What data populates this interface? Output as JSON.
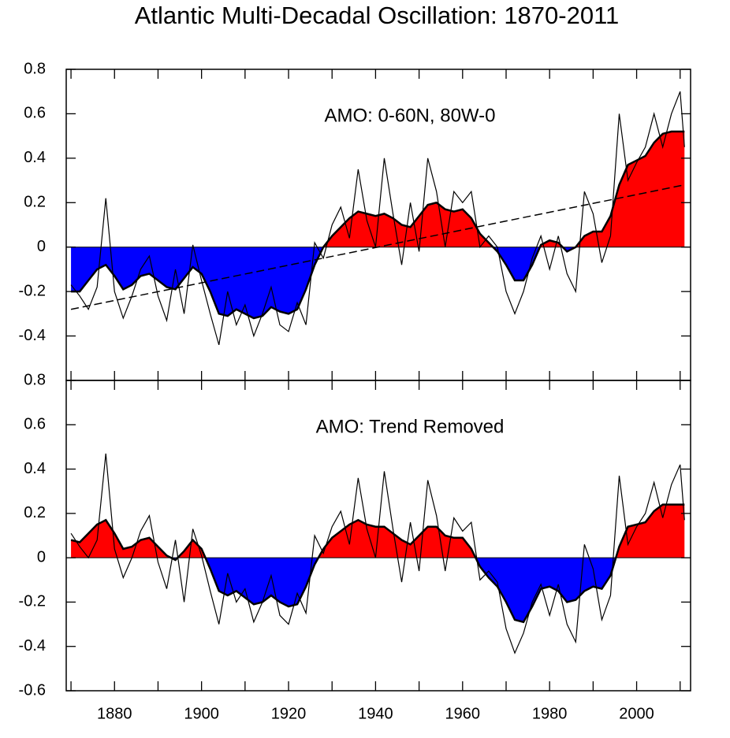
{
  "chart_data": [
    {
      "type": "area",
      "title": "Atlantic Multi-Decadal Oscillation: 1870-2011",
      "annotation": "AMO: 0-60N, 80W-0",
      "x": [
        1870,
        1872,
        1874,
        1876,
        1878,
        1880,
        1882,
        1884,
        1886,
        1888,
        1890,
        1892,
        1894,
        1896,
        1898,
        1900,
        1902,
        1904,
        1906,
        1908,
        1910,
        1912,
        1914,
        1916,
        1918,
        1920,
        1922,
        1924,
        1926,
        1928,
        1930,
        1932,
        1934,
        1936,
        1938,
        1940,
        1942,
        1944,
        1946,
        1948,
        1950,
        1952,
        1954,
        1956,
        1958,
        1960,
        1962,
        1964,
        1966,
        1968,
        1970,
        1972,
        1974,
        1976,
        1978,
        1980,
        1982,
        1984,
        1986,
        1988,
        1990,
        1992,
        1994,
        1996,
        1998,
        2000,
        2002,
        2004,
        2006,
        2008,
        2010,
        2011
      ],
      "series": [
        {
          "style": "fill",
          "color": "#000000",
          "positive_color": "#ff0000",
          "negative_color": "#0000ff",
          "values": [
            -0.2,
            -0.2,
            -0.15,
            -0.1,
            -0.08,
            -0.13,
            -0.19,
            -0.17,
            -0.13,
            -0.12,
            -0.15,
            -0.18,
            -0.19,
            -0.14,
            -0.09,
            -0.12,
            -0.2,
            -0.3,
            -0.31,
            -0.28,
            -0.3,
            -0.32,
            -0.31,
            -0.27,
            -0.29,
            -0.3,
            -0.28,
            -0.19,
            -0.08,
            0.0,
            0.05,
            0.09,
            0.13,
            0.16,
            0.15,
            0.14,
            0.15,
            0.13,
            0.1,
            0.09,
            0.14,
            0.19,
            0.2,
            0.17,
            0.16,
            0.17,
            0.13,
            0.06,
            0.02,
            -0.02,
            -0.08,
            -0.15,
            -0.15,
            -0.08,
            0.01,
            0.03,
            0.02,
            -0.02,
            0.0,
            0.05,
            0.07,
            0.07,
            0.14,
            0.28,
            0.37,
            0.39,
            0.41,
            0.47,
            0.51,
            0.52,
            0.52,
            0.52
          ]
        },
        {
          "style": "line",
          "color": "#000000",
          "values": [
            -0.17,
            -0.22,
            -0.28,
            -0.18,
            0.22,
            -0.2,
            -0.32,
            -0.22,
            -0.1,
            -0.04,
            -0.22,
            -0.33,
            -0.1,
            -0.3,
            0.01,
            -0.15,
            -0.3,
            -0.44,
            -0.2,
            -0.35,
            -0.26,
            -0.4,
            -0.3,
            -0.18,
            -0.35,
            -0.38,
            -0.25,
            -0.35,
            0.02,
            -0.05,
            0.1,
            0.18,
            0.04,
            0.35,
            0.12,
            0.0,
            0.4,
            0.15,
            -0.08,
            0.2,
            -0.02,
            0.4,
            0.25,
            0.0,
            0.25,
            0.2,
            0.25,
            0.0,
            0.05,
            0.0,
            -0.2,
            -0.3,
            -0.2,
            -0.05,
            0.05,
            -0.1,
            0.05,
            -0.12,
            -0.2,
            0.25,
            0.15,
            -0.07,
            0.05,
            0.6,
            0.3,
            0.38,
            0.45,
            0.6,
            0.45,
            0.6,
            0.7,
            0.45
          ]
        }
      ],
      "trend": {
        "x": [
          1870,
          2011
        ],
        "values": [
          -0.28,
          0.28
        ],
        "color": "#000000"
      },
      "xlim": [
        1868.9,
        2012.4
      ],
      "ylim": [
        -0.6,
        0.8
      ],
      "yticks": [
        -0.4,
        -0.2,
        0,
        0.2,
        0.4,
        0.6,
        0.8
      ]
    },
    {
      "type": "area",
      "annotation": "AMO: Trend Removed",
      "x": [
        1870,
        1872,
        1874,
        1876,
        1878,
        1880,
        1882,
        1884,
        1886,
        1888,
        1890,
        1892,
        1894,
        1896,
        1898,
        1900,
        1902,
        1904,
        1906,
        1908,
        1910,
        1912,
        1914,
        1916,
        1918,
        1920,
        1922,
        1924,
        1926,
        1928,
        1930,
        1932,
        1934,
        1936,
        1938,
        1940,
        1942,
        1944,
        1946,
        1948,
        1950,
        1952,
        1954,
        1956,
        1958,
        1960,
        1962,
        1964,
        1966,
        1968,
        1970,
        1972,
        1974,
        1976,
        1978,
        1980,
        1982,
        1984,
        1986,
        1988,
        1990,
        1992,
        1994,
        1996,
        1998,
        2000,
        2002,
        2004,
        2006,
        2008,
        2010,
        2011
      ],
      "series": [
        {
          "style": "fill",
          "color": "#000000",
          "positive_color": "#ff0000",
          "negative_color": "#0000ff",
          "values": [
            0.08,
            0.07,
            0.11,
            0.15,
            0.17,
            0.11,
            0.04,
            0.05,
            0.08,
            0.09,
            0.05,
            0.01,
            -0.01,
            0.03,
            0.08,
            0.04,
            -0.05,
            -0.15,
            -0.17,
            -0.15,
            -0.18,
            -0.21,
            -0.2,
            -0.17,
            -0.2,
            -0.22,
            -0.21,
            -0.13,
            -0.03,
            0.04,
            0.09,
            0.12,
            0.15,
            0.17,
            0.15,
            0.14,
            0.14,
            0.11,
            0.08,
            0.06,
            0.1,
            0.14,
            0.14,
            0.1,
            0.09,
            0.09,
            0.04,
            -0.04,
            -0.09,
            -0.13,
            -0.2,
            -0.28,
            -0.29,
            -0.22,
            -0.14,
            -0.13,
            -0.15,
            -0.2,
            -0.19,
            -0.15,
            -0.13,
            -0.14,
            -0.08,
            0.05,
            0.14,
            0.15,
            0.16,
            0.21,
            0.24,
            0.24,
            0.24,
            0.24
          ]
        },
        {
          "style": "line",
          "color": "#000000",
          "values": [
            0.11,
            0.05,
            0.0,
            0.08,
            0.47,
            0.04,
            -0.09,
            0.0,
            0.12,
            0.19,
            -0.02,
            -0.14,
            0.08,
            -0.2,
            0.13,
            0.01,
            -0.15,
            -0.3,
            -0.07,
            -0.2,
            -0.14,
            -0.29,
            -0.2,
            -0.08,
            -0.26,
            -0.3,
            -0.16,
            -0.25,
            0.1,
            0.02,
            0.14,
            0.21,
            0.06,
            0.36,
            0.13,
            0.0,
            0.39,
            0.13,
            -0.11,
            0.16,
            -0.06,
            0.35,
            0.19,
            -0.06,
            0.18,
            0.12,
            0.16,
            -0.1,
            -0.06,
            -0.11,
            -0.32,
            -0.43,
            -0.34,
            -0.2,
            -0.12,
            -0.26,
            -0.12,
            -0.3,
            -0.38,
            0.06,
            -0.05,
            -0.28,
            -0.17,
            0.37,
            0.06,
            0.14,
            0.2,
            0.34,
            0.18,
            0.33,
            0.42,
            0.17
          ]
        }
      ],
      "xlim": [
        1868.9,
        2012.4
      ],
      "ylim": [
        -0.6,
        0.8
      ],
      "yticks": [
        -0.6,
        -0.4,
        -0.2,
        0,
        0.2,
        0.4,
        0.6,
        0.8
      ],
      "xticks": [
        1880,
        1900,
        1920,
        1940,
        1960,
        1980,
        2000
      ],
      "xminorticks": [
        1870,
        1890,
        1910,
        1930,
        1950,
        1970,
        1990,
        2010
      ]
    }
  ]
}
